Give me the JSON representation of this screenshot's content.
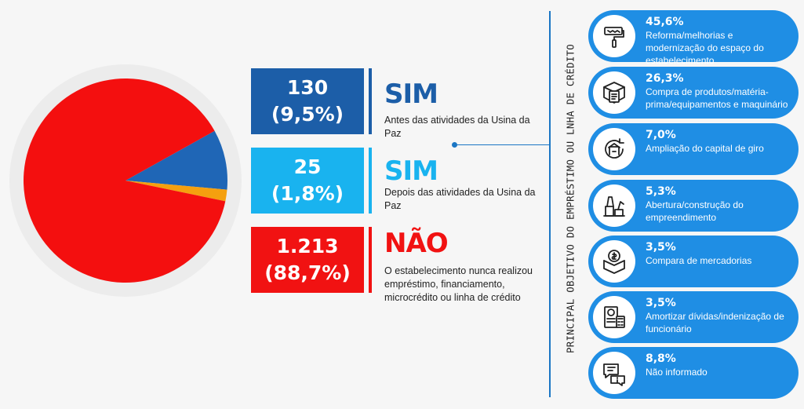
{
  "chart_data": {
    "type": "pie",
    "title": "",
    "slices": [
      {
        "label": "SIM – Antes das atividades da Usina da Paz",
        "value": 130,
        "percent": 9.5,
        "color": "#1f66b6"
      },
      {
        "label": "SIM – Depois das atividades da Usina da Paz",
        "value": 25,
        "percent": 1.8,
        "color": "#f5a00f"
      },
      {
        "label": "NÃO – O estabelecimento nunca realizou empréstimo, financiamento, microcrédito ou linha de crédito",
        "value": 1213,
        "percent": 88.7,
        "color": "#f40f0f"
      }
    ]
  },
  "answers": [
    {
      "value_line1": "130",
      "value_line2": "(9,5%)",
      "title": "SIM",
      "description": "Antes das atividades da Usina da Paz",
      "box_color": "#1c5ea8",
      "title_color": "#1c5ea8"
    },
    {
      "value_line1": "25",
      "value_line2": "(1,8%)",
      "title": "SIM",
      "description": "Depois das atividades da Usina da Paz",
      "box_color": "#19b3ef",
      "title_color": "#19b3ef"
    },
    {
      "value_line1": "1.213",
      "value_line2": "(88,7%)",
      "title": "NÃO",
      "description": "O estabelecimento nunca realizou empréstimo, financiamento, microcrédito ou linha de crédito",
      "box_color": "#f11212",
      "title_color": "#f11212"
    }
  ],
  "vertical_label": "PRINCIPAL OBJETIVO DO EMPRÉSTIMO OU LNHA DE CRÉDITO",
  "reasons": [
    {
      "percent": "45,6%",
      "text": "Reforma/melhorias e modernização do espaço do estabelecimento",
      "icon": "paint-roller-icon"
    },
    {
      "percent": "26,3%",
      "text": "Compra de produtos/matéria-prima/equipamentos e maquinário",
      "icon": "box-checklist-icon"
    },
    {
      "percent": "7,0%",
      "text": "Ampliação do capital de giro",
      "icon": "capital-cycle-icon"
    },
    {
      "percent": "5,3%",
      "text": "Abertura/construção do empreendimento",
      "icon": "construction-icon"
    },
    {
      "percent": "3,5%",
      "text": "Compara de mercadorias",
      "icon": "money-box-icon"
    },
    {
      "percent": "3,5%",
      "text": "Amortizar dívidas/indenização de funcionário",
      "icon": "invoice-calculator-icon"
    },
    {
      "percent": "8,8%",
      "text": "Não informado",
      "icon": "info-chat-icon"
    }
  ]
}
